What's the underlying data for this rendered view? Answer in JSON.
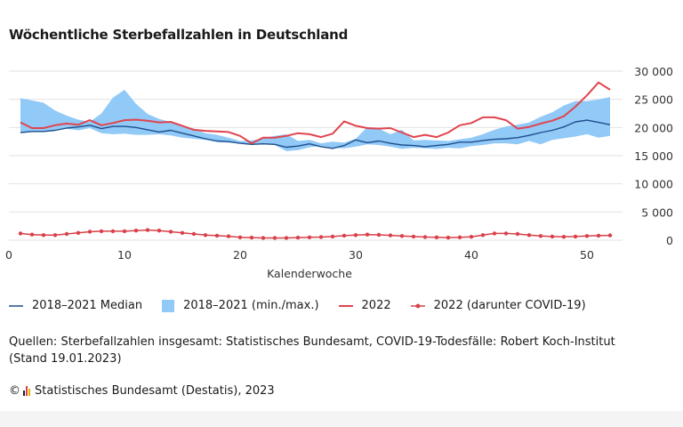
{
  "title": "Wöchentliche Sterbefallzahlen in Deutschland",
  "legend": {
    "median": "2018–2021 Median",
    "range": "2018–2021 (min./max.)",
    "y2022": "2022",
    "covid": "2022 (darunter COVID-19)"
  },
  "source": "Quellen: Sterbefallzahlen insgesamt: Statistisches Bundesamt, COVID-19-Todesfälle: Robert Koch-Institut (Stand 19.01.2023)",
  "copyright_symbol": "©",
  "copyright": "Statistisches Bundesamt (Destatis), 2023",
  "colors": {
    "median": "#1f4e8c",
    "range": "#91c9f7",
    "y2022": "#e0454f",
    "covid": "#d9404a",
    "grid": "#e2e2e2"
  },
  "chart_data": {
    "type": "line",
    "xlabel": "Kalenderwoche",
    "ylabel": "",
    "xlim": [
      0,
      52
    ],
    "ylim": [
      0,
      30000
    ],
    "xticks": [
      0,
      10,
      20,
      30,
      40,
      50
    ],
    "yticks": [
      0,
      5000,
      10000,
      15000,
      20000,
      25000,
      30000
    ],
    "ytick_labels": [
      "0",
      "5 000",
      "10 000",
      "15 000",
      "20 000",
      "25 000",
      "30 000"
    ],
    "grid": "horizontal",
    "legend_position": "bottom",
    "x": [
      1,
      2,
      3,
      4,
      5,
      6,
      7,
      8,
      9,
      10,
      11,
      12,
      13,
      14,
      15,
      16,
      17,
      18,
      19,
      20,
      21,
      22,
      23,
      24,
      25,
      26,
      27,
      28,
      29,
      30,
      31,
      32,
      33,
      34,
      35,
      36,
      37,
      38,
      39,
      40,
      41,
      42,
      43,
      44,
      45,
      46,
      47,
      48,
      49,
      50,
      51,
      52
    ],
    "series": [
      {
        "name": "2018–2021 (min./max.)",
        "kind": "band",
        "min": [
          19200,
          19300,
          19300,
          19400,
          19800,
          19500,
          19900,
          19000,
          18800,
          18900,
          18700,
          18700,
          18800,
          18600,
          18200,
          18000,
          17800,
          17400,
          17300,
          17200,
          17000,
          17100,
          16900,
          15800,
          16000,
          16500,
          16700,
          16400,
          16300,
          16600,
          17000,
          16900,
          16600,
          16200,
          16400,
          16300,
          16200,
          16400,
          16300,
          16700,
          16900,
          17200,
          17200,
          17000,
          17600,
          17000,
          17800,
          18100,
          18400,
          18800,
          18200,
          18500
        ],
        "max": [
          25200,
          24800,
          24400,
          23000,
          22100,
          21400,
          21000,
          22500,
          25300,
          26700,
          24200,
          22400,
          21500,
          21000,
          20300,
          19800,
          19000,
          18700,
          18200,
          17600,
          17700,
          18100,
          18500,
          18800,
          17600,
          17800,
          17200,
          17500,
          17300,
          18000,
          20100,
          19800,
          18800,
          19600,
          17700,
          17800,
          17700,
          17600,
          17900,
          18200,
          18800,
          19600,
          20200,
          20500,
          20900,
          21900,
          22700,
          23900,
          24700,
          24700,
          25000,
          25400
        ]
      },
      {
        "name": "2018–2021 Median",
        "values": [
          19100,
          19300,
          19300,
          19500,
          19900,
          20100,
          20400,
          19800,
          20200,
          20200,
          20000,
          19600,
          19200,
          19500,
          19000,
          18500,
          18000,
          17600,
          17500,
          17200,
          17000,
          17100,
          17000,
          16500,
          16700,
          17100,
          16600,
          16300,
          16800,
          17800,
          17300,
          17600,
          17200,
          16900,
          16800,
          16600,
          16800,
          17000,
          17400,
          17400,
          17700,
          17900,
          18000,
          18200,
          18600,
          19100,
          19500,
          20100,
          21000,
          21300,
          20900,
          20500
        ]
      },
      {
        "name": "2022",
        "values": [
          20900,
          19900,
          19900,
          20400,
          20700,
          20500,
          21300,
          20400,
          20800,
          21300,
          21400,
          21200,
          20900,
          21000,
          20300,
          19600,
          19400,
          19300,
          19200,
          18500,
          17200,
          18200,
          18200,
          18500,
          19000,
          18800,
          18300,
          18900,
          21100,
          20300,
          19900,
          19800,
          19900,
          19100,
          18300,
          18700,
          18300,
          19100,
          20400,
          20800,
          21800,
          21800,
          21300,
          19800,
          20100,
          20700,
          21200,
          22000,
          23700,
          25700,
          28000,
          26700
        ]
      },
      {
        "name": "2022 (darunter COVID-19)",
        "values": [
          1200,
          1000,
          900,
          900,
          1100,
          1300,
          1500,
          1600,
          1600,
          1600,
          1700,
          1800,
          1700,
          1500,
          1300,
          1100,
          900,
          800,
          700,
          500,
          450,
          400,
          400,
          400,
          450,
          500,
          550,
          650,
          800,
          900,
          1000,
          950,
          850,
          750,
          650,
          550,
          500,
          450,
          500,
          600,
          900,
          1200,
          1200,
          1100,
          900,
          750,
          650,
          600,
          650,
          750,
          800,
          850
        ]
      }
    ]
  }
}
